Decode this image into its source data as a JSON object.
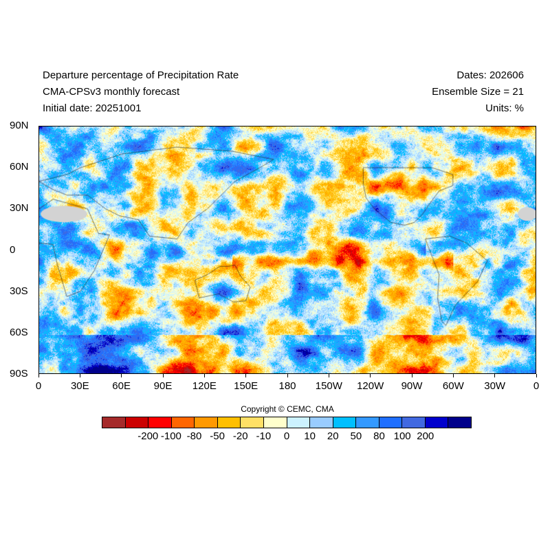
{
  "header": {
    "title": "Departure percentage of Precipitation Rate",
    "model": "CMA-CPSv3 monthly forecast",
    "initial_date": "Initial date: 20251001",
    "dates": "Dates: 202606",
    "ensemble": "Ensemble Size = 21",
    "units": "Units: %"
  },
  "map": {
    "lat_labels": [
      "90N",
      "60N",
      "30N",
      "0",
      "30S",
      "60S",
      "90S"
    ],
    "lon_labels": [
      "0",
      "30E",
      "60E",
      "90E",
      "120E",
      "150E",
      "180",
      "150W",
      "120W",
      "90W",
      "60W",
      "30W",
      "0"
    ],
    "missing_color": "#d3d3d3",
    "coastline_color": "#222222"
  },
  "copyright": "Copyright © CEMC, CMA",
  "colorbar": {
    "colors": [
      "#a52a2a",
      "#cc0000",
      "#ff0000",
      "#ff6600",
      "#ff9900",
      "#ffbf00",
      "#ffe066",
      "#ffffcc",
      "#ccf2ff",
      "#99ccff",
      "#00bfff",
      "#3399ff",
      "#1f6fff",
      "#4169e1",
      "#0000cd",
      "#00008b"
    ],
    "labels": [
      "-200",
      "-100",
      "-80",
      "-50",
      "-20",
      "-10",
      "0",
      "10",
      "20",
      "50",
      "80",
      "100",
      "200"
    ]
  }
}
